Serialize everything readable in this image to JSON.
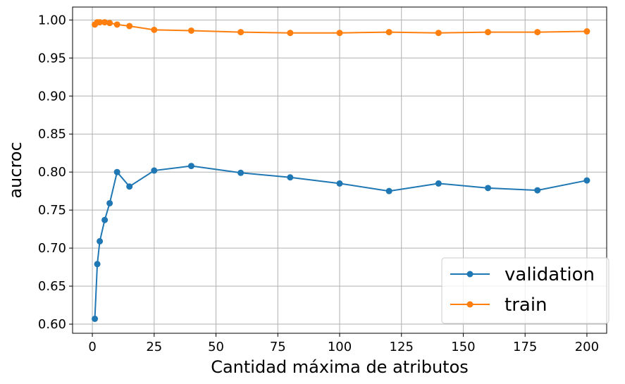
{
  "chart_data": {
    "type": "line",
    "xlabel": "Cantidad máxima de atributos",
    "ylabel": "aucroc",
    "xlim": [
      -8,
      208
    ],
    "ylim": [
      0.588,
      1.017
    ],
    "xticks": [
      0,
      25,
      50,
      75,
      100,
      125,
      150,
      175,
      200
    ],
    "yticks": [
      0.6,
      0.65,
      0.7,
      0.75,
      0.8,
      0.85,
      0.9,
      0.95,
      1.0
    ],
    "xtick_labels": [
      "0",
      "25",
      "50",
      "75",
      "100",
      "125",
      "150",
      "175",
      "200"
    ],
    "ytick_labels": [
      "0.60",
      "0.65",
      "0.70",
      "0.75",
      "0.80",
      "0.85",
      "0.90",
      "0.95",
      "1.00"
    ],
    "grid": true,
    "legend_position": "bottom-right",
    "series": [
      {
        "name": "validation",
        "color": "#1f77b4",
        "x": [
          1,
          2,
          3,
          5,
          7,
          10,
          15,
          25,
          40,
          60,
          80,
          100,
          120,
          140,
          160,
          180,
          200
        ],
        "y": [
          0.607,
          0.679,
          0.709,
          0.737,
          0.759,
          0.8,
          0.781,
          0.802,
          0.808,
          0.799,
          0.793,
          0.785,
          0.775,
          0.785,
          0.779,
          0.776,
          0.789
        ]
      },
      {
        "name": "train",
        "color": "#ff7f0e",
        "x": [
          1,
          2,
          3,
          5,
          7,
          10,
          15,
          25,
          40,
          60,
          80,
          100,
          120,
          140,
          160,
          180,
          200
        ],
        "y": [
          0.994,
          0.997,
          0.997,
          0.997,
          0.996,
          0.994,
          0.992,
          0.987,
          0.986,
          0.984,
          0.983,
          0.983,
          0.984,
          0.983,
          0.984,
          0.984,
          0.985
        ]
      }
    ]
  }
}
